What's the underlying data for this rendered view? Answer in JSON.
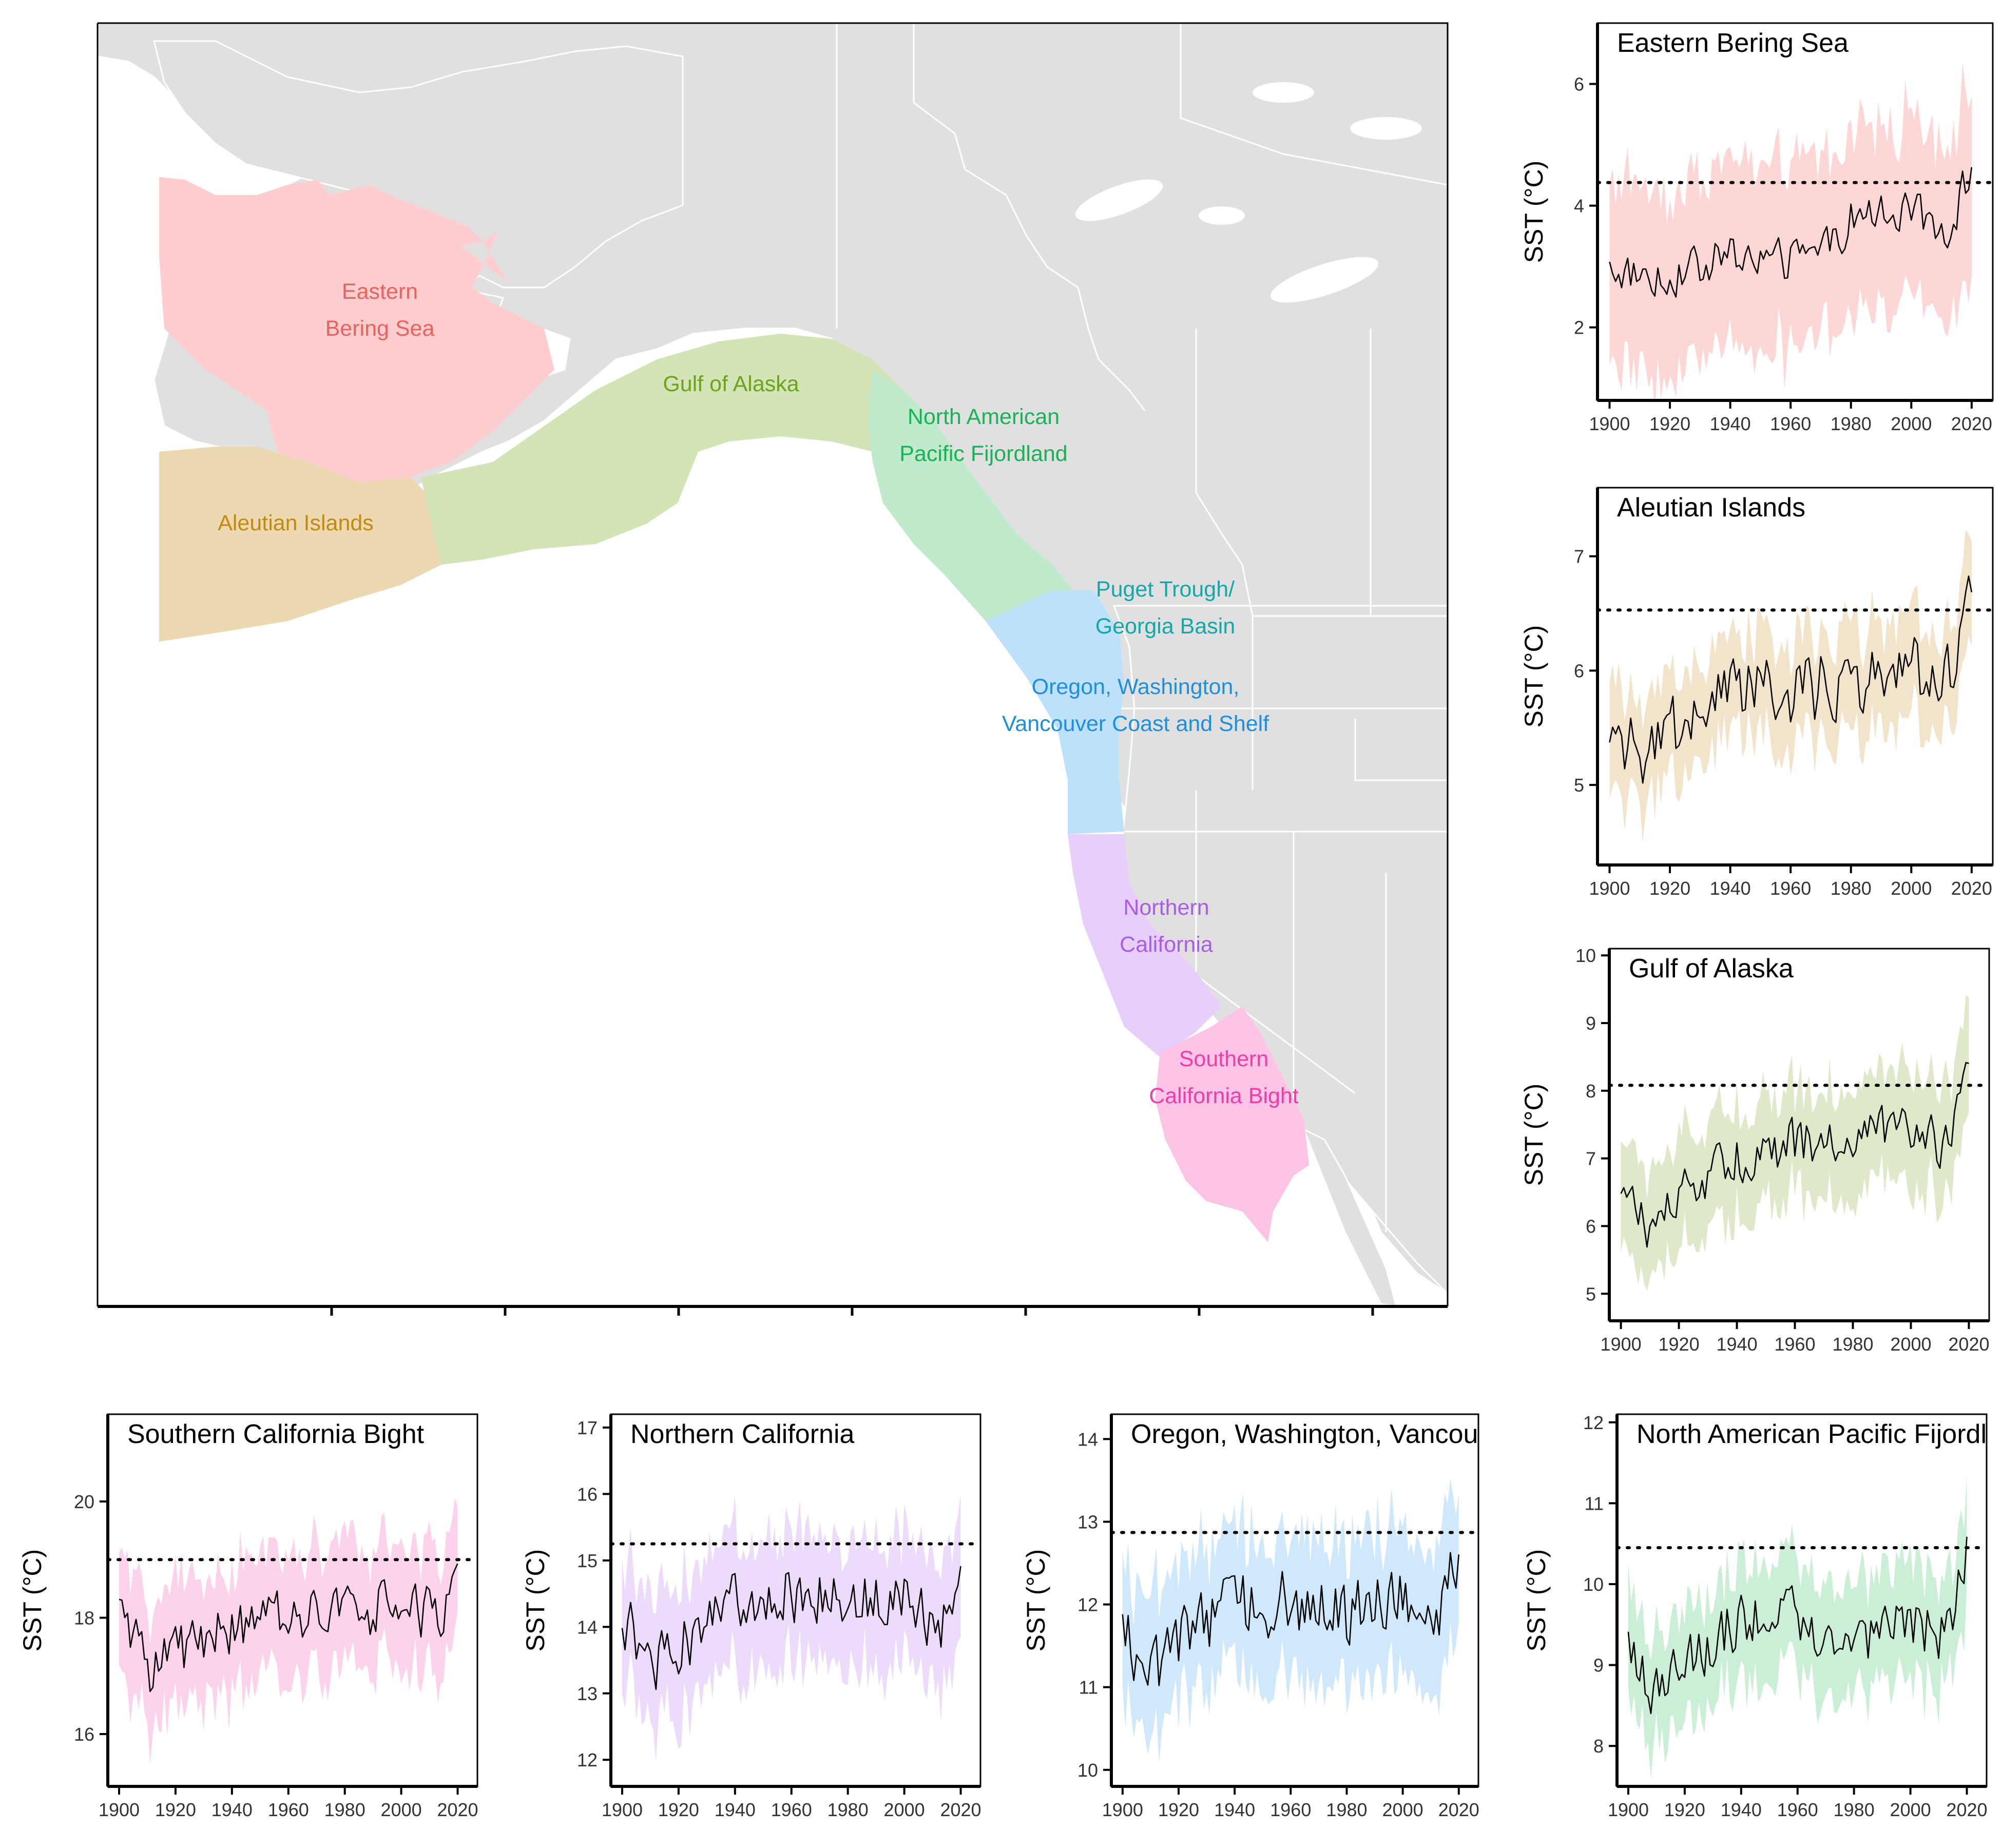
{
  "map": {
    "regions": [
      {
        "key": "ebs",
        "lines": [
          "Eastern",
          "Bering Sea"
        ],
        "color": "#e8635b",
        "fill": "#fdcdd0"
      },
      {
        "key": "goa",
        "lines": [
          "Gulf of Alaska"
        ],
        "color": "#6ea31b",
        "fill": "#d3e4b6"
      },
      {
        "key": "npf",
        "lines": [
          "North American",
          "Pacific Fijordland"
        ],
        "color": "#19b256",
        "fill": "#bfeacc"
      },
      {
        "key": "ai",
        "lines": [
          "Aleutian Islands"
        ],
        "color": "#c28a12",
        "fill": "#ecd9b1"
      },
      {
        "key": "ptgb",
        "lines": [
          "Puget Trough/",
          "Georgia Basin"
        ],
        "color": "#12a8a8",
        "fill": "#b9e3ea"
      },
      {
        "key": "owv",
        "lines": [
          "Oregon, Washington,",
          "Vancouver Coast and Shelf"
        ],
        "color": "#1c8fe0",
        "fill": "#bde0fb"
      },
      {
        "key": "nc",
        "lines": [
          "Northern",
          "California"
        ],
        "color": "#a85ce8",
        "fill": "#e8cffb"
      },
      {
        "key": "scb",
        "lines": [
          "Southern",
          "California Bight"
        ],
        "color": "#ee3ca9",
        "fill": "#fdc4e5"
      }
    ],
    "land_color": "#e0e0e0"
  },
  "chart_data": [
    {
      "id": "ebs",
      "type": "line",
      "title": "Eastern Bering Sea",
      "ylabel": "SST (°C)",
      "xlabel": "",
      "band_color": "#fdd6d6",
      "x_range": [
        1900,
        2020
      ],
      "ylim": [
        0.8,
        7.0
      ],
      "yticks": [
        2,
        4,
        6
      ],
      "xticks": [
        1900,
        1920,
        1940,
        1960,
        1980,
        2000,
        2020
      ],
      "reference": 4.38,
      "series": [
        {
          "anchors": [
            [
              1900,
              2.95
            ],
            [
              1920,
              2.8
            ],
            [
              1940,
              3.2
            ],
            [
              1960,
              3.1
            ],
            [
              1975,
              3.4
            ],
            [
              1980,
              3.8
            ],
            [
              2000,
              3.9
            ],
            [
              2013,
              3.6
            ],
            [
              2020,
              4.7
            ]
          ],
          "band_half": 1.5,
          "variability": 0.3
        }
      ]
    },
    {
      "id": "ai",
      "type": "line",
      "title": "Aleutian Islands",
      "ylabel": "SST (°C)",
      "xlabel": "",
      "band_color": "#f2e4ca",
      "x_range": [
        1900,
        2020
      ],
      "ylim": [
        4.3,
        7.6
      ],
      "yticks": [
        5,
        6,
        7
      ],
      "xticks": [
        1900,
        1920,
        1940,
        1960,
        1980,
        2000,
        2020
      ],
      "reference": 6.53,
      "series": [
        {
          "anchors": [
            [
              1900,
              5.6
            ],
            [
              1910,
              5.2
            ],
            [
              1920,
              5.5
            ],
            [
              1940,
              5.8
            ],
            [
              1960,
              5.8
            ],
            [
              1980,
              5.9
            ],
            [
              2000,
              6.0
            ],
            [
              2013,
              5.9
            ],
            [
              2020,
              6.6
            ]
          ],
          "band_half": 0.45,
          "variability": 0.28
        }
      ]
    },
    {
      "id": "goa",
      "type": "line",
      "title": "Gulf of Alaska",
      "ylabel": "SST (°C)",
      "xlabel": "",
      "band_color": "#dfe9c9",
      "x_range": [
        1900,
        2020
      ],
      "ylim": [
        4.6,
        10.1
      ],
      "yticks": [
        5,
        6,
        7,
        8,
        9,
        10
      ],
      "xticks": [
        1900,
        1920,
        1940,
        1960,
        1980,
        2000,
        2020
      ],
      "reference": 8.08,
      "series": [
        {
          "anchors": [
            [
              1900,
              6.5
            ],
            [
              1910,
              6.0
            ],
            [
              1920,
              6.4
            ],
            [
              1940,
              7.0
            ],
            [
              1960,
              7.2
            ],
            [
              1980,
              7.3
            ],
            [
              2000,
              7.5
            ],
            [
              2012,
              7.2
            ],
            [
              2020,
              8.3
            ]
          ],
          "band_half": 0.8,
          "variability": 0.35
        }
      ]
    },
    {
      "id": "scb",
      "type": "line",
      "title": "Southern California Bight",
      "ylabel": "SST (°C)",
      "xlabel": "",
      "band_color": "#fcd3ea",
      "x_range": [
        1900,
        2020
      ],
      "ylim": [
        15.1,
        21.5
      ],
      "yticks": [
        16,
        18,
        20
      ],
      "xticks": [
        1900,
        1920,
        1940,
        1960,
        1980,
        2000,
        2020
      ],
      "reference": 19.0,
      "series": [
        {
          "anchors": [
            [
              1900,
              18.0
            ],
            [
              1910,
              17.1
            ],
            [
              1920,
              17.4
            ],
            [
              1940,
              17.8
            ],
            [
              1960,
              18.0
            ],
            [
              1980,
              18.1
            ],
            [
              2000,
              18.2
            ],
            [
              2013,
              18.1
            ],
            [
              2020,
              18.8
            ]
          ],
          "band_half": 1.05,
          "variability": 0.45
        }
      ]
    },
    {
      "id": "nc",
      "type": "line",
      "title": "Northern California",
      "ylabel": "SST (°C)",
      "xlabel": "",
      "band_color": "#ecdbfb",
      "x_range": [
        1900,
        2020
      ],
      "ylim": [
        11.6,
        17.2
      ],
      "yticks": [
        12,
        13,
        14,
        15,
        16,
        17
      ],
      "xticks": [
        1900,
        1920,
        1940,
        1960,
        1980,
        2000,
        2020
      ],
      "reference": 15.25,
      "series": [
        {
          "anchors": [
            [
              1900,
              14.2
            ],
            [
              1910,
              13.3
            ],
            [
              1920,
              13.7
            ],
            [
              1940,
              14.4
            ],
            [
              1960,
              14.5
            ],
            [
              1980,
              14.4
            ],
            [
              2000,
              14.5
            ],
            [
              2013,
              14.0
            ],
            [
              2020,
              14.8
            ]
          ],
          "band_half": 0.95,
          "variability": 0.4
        }
      ]
    },
    {
      "id": "owv",
      "type": "line",
      "title": "Oregon, Washington, Vancouver Coast and Shelf",
      "ylabel": "SST (°C)",
      "xlabel": "",
      "band_color": "#d0e8fb",
      "x_range": [
        1900,
        2020
      ],
      "ylim": [
        9.8,
        14.3
      ],
      "yticks": [
        10,
        11,
        12,
        13,
        14
      ],
      "xticks": [
        1900,
        1920,
        1940,
        1960,
        1980,
        2000,
        2020
      ],
      "reference": 12.87,
      "series": [
        {
          "anchors": [
            [
              1900,
              11.8
            ],
            [
              1910,
              11.1
            ],
            [
              1920,
              11.5
            ],
            [
              1940,
              12.0
            ],
            [
              1960,
              12.0
            ],
            [
              1980,
              11.9
            ],
            [
              2000,
              12.0
            ],
            [
              2013,
              12.0
            ],
            [
              2020,
              12.5
            ]
          ],
          "band_half": 0.85,
          "variability": 0.38
        }
      ]
    },
    {
      "id": "npf",
      "type": "line",
      "title": "North American Pacific Fijordland",
      "ylabel": "SST (°C)",
      "xlabel": "",
      "band_color": "#cbeed7",
      "x_range": [
        1900,
        2020
      ],
      "ylim": [
        7.5,
        12.1
      ],
      "yticks": [
        8,
        9,
        10,
        11,
        12
      ],
      "xticks": [
        1900,
        1920,
        1940,
        1960,
        1980,
        2000,
        2020
      ],
      "reference": 10.45,
      "series": [
        {
          "anchors": [
            [
              1900,
              9.1
            ],
            [
              1910,
              8.6
            ],
            [
              1920,
              9.0
            ],
            [
              1940,
              9.6
            ],
            [
              1960,
              9.6
            ],
            [
              1975,
              9.2
            ],
            [
              2000,
              9.5
            ],
            [
              2013,
              9.4
            ],
            [
              2020,
              10.5
            ]
          ],
          "band_half": 0.7,
          "variability": 0.32
        }
      ]
    }
  ]
}
